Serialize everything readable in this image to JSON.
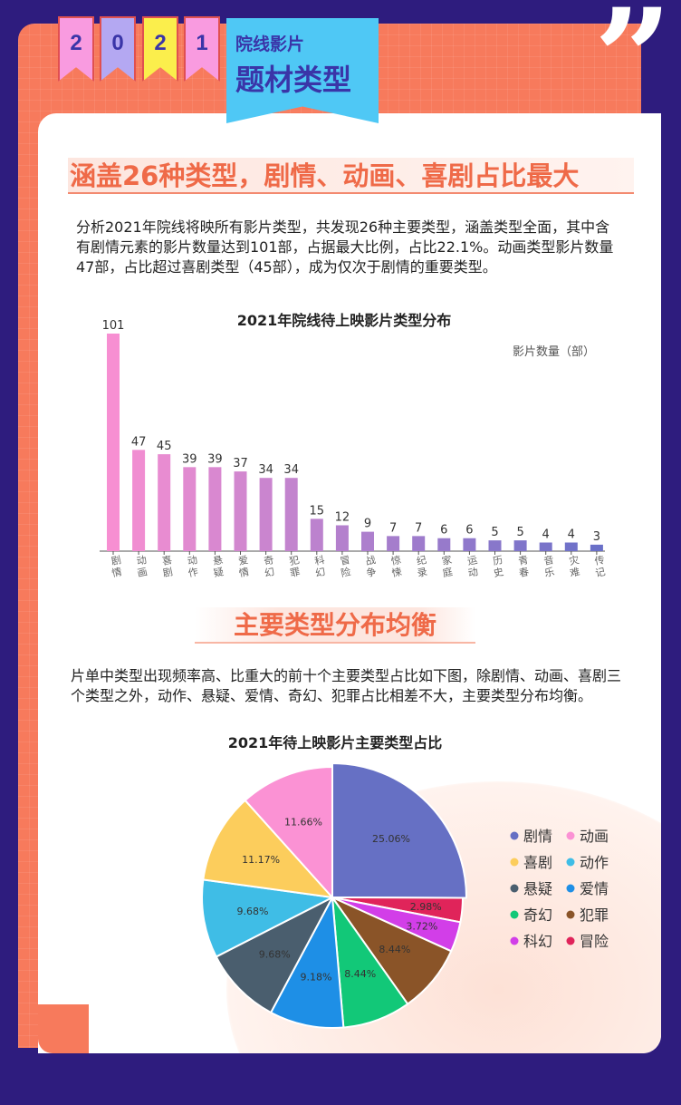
{
  "header": {
    "year_digits": [
      "2",
      "0",
      "2",
      "1"
    ],
    "badge_small": "院线影片",
    "badge_large": "题材类型",
    "quote_mark": "”"
  },
  "section1": {
    "heading": "涵盖26种类型，剧情、动画、喜剧占比最大",
    "paragraph": "分析2021年院线将映所有影片类型，共发现26种主要类型，涵盖类型全面，其中含有剧情元素的影片数量达到101部，占据最大比例，占比22.1%。动画类型影片数量47部，占比超过喜剧类型（45部），成为仅次于剧情的重要类型。"
  },
  "section2": {
    "heading": "主要类型分布均衡",
    "paragraph": "片单中类型出现频率高、比重大的前十个主要类型占比如下图，除剧情、动画、喜剧三个类型之外，动作、悬疑、爱情、奇幻、犯罪占比相差不大，主要类型分布均衡。"
  },
  "chart_data": [
    {
      "type": "bar",
      "title": "2021年院线待上映影片类型分布",
      "legend": "影片数量（部）",
      "categories": [
        "剧情",
        "动画",
        "喜剧",
        "动作",
        "悬疑",
        "爱情",
        "奇幻",
        "犯罪",
        "科幻",
        "冒险",
        "战争",
        "惊悚",
        "纪录",
        "家庭",
        "运动",
        "历史",
        "青春",
        "音乐",
        "灾难",
        "传记"
      ],
      "values": [
        101,
        47,
        45,
        39,
        39,
        37,
        34,
        34,
        15,
        12,
        9,
        7,
        7,
        6,
        6,
        5,
        5,
        4,
        4,
        3
      ],
      "ylim": [
        0,
        101
      ],
      "grid": false,
      "color_start": "#f78fd2",
      "color_end": "#6a70c8"
    },
    {
      "type": "pie",
      "title": "2021年待上映影片主要类型占比",
      "legend_placement": "right",
      "categories": [
        "剧情",
        "动画",
        "喜剧",
        "动作",
        "悬疑",
        "爱情",
        "奇幻",
        "犯罪",
        "科幻",
        "冒险"
      ],
      "values": [
        25.06,
        11.66,
        11.17,
        9.68,
        9.68,
        9.18,
        8.44,
        8.44,
        3.72,
        2.98
      ],
      "labels": [
        "25.06%",
        "11.66%",
        "11.17%",
        "9.68%",
        "9.68%",
        "9.18%",
        "8.44%",
        "8.44%",
        "3.72%",
        "2.98%"
      ],
      "colors": [
        "#6670c4",
        "#fb92d4",
        "#fccd5c",
        "#3fbde6",
        "#4a5e6e",
        "#1e8fe6",
        "#12c878",
        "#8a5428",
        "#d23ee8",
        "#e0245a"
      ]
    }
  ]
}
